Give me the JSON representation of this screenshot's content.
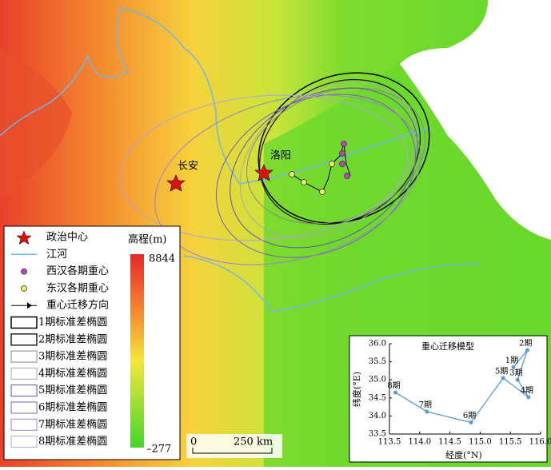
{
  "map": {
    "labels": [
      "长安",
      "洛阳"
    ]
  },
  "legend": {
    "items": [
      "政治中心",
      "江河",
      "西汉各期重心",
      "东汉各期重心",
      "重心迁移方向",
      "1期标准差椭圆",
      "2期标准差椭圆",
      "3期标准差椭圆",
      "4期标准差椭圆",
      "5期标准差椭圆",
      "6期标准差椭圆",
      "7期标准差椭圆",
      "8期标准差椭圆"
    ]
  },
  "elevation": {
    "title": "高程(m)",
    "max": "8844",
    "min": "–277"
  },
  "scale_bar": {
    "start": "0",
    "end": "250 km"
  },
  "chart_data": {
    "type": "line",
    "title": "重心迁移模型",
    "x_label": "经度(°N)",
    "y_label": "纬度(°E)",
    "x": [
      115.55,
      115.78,
      115.62,
      115.8,
      115.38,
      114.85,
      114.12,
      113.6
    ],
    "values": [
      35.35,
      35.82,
      35.0,
      34.52,
      35.05,
      33.82,
      34.12,
      34.65
    ],
    "point_labels": [
      "1期",
      "2期",
      "3期",
      "4期",
      "5期",
      "6期",
      "7期",
      "8期"
    ],
    "color": "#5b9bd5",
    "xlim": [
      113.5,
      116.0
    ],
    "ylim": [
      33.5,
      36.0
    ],
    "xticks": [
      113.5,
      {
        "value": 114,
        "label": "114.0"
      },
      114.5,
      {
        "value": 115,
        "label": "115.0"
      },
      115.5,
      {
        "value": 116,
        "label": "116.0"
      }
    ],
    "yticks": [
      33.5,
      {
        "value": 34,
        "label": "34.0"
      },
      34.5,
      {
        "value": 35,
        "label": "35.0"
      },
      35.5,
      {
        "value": 36,
        "label": "36.0"
      }
    ]
  }
}
